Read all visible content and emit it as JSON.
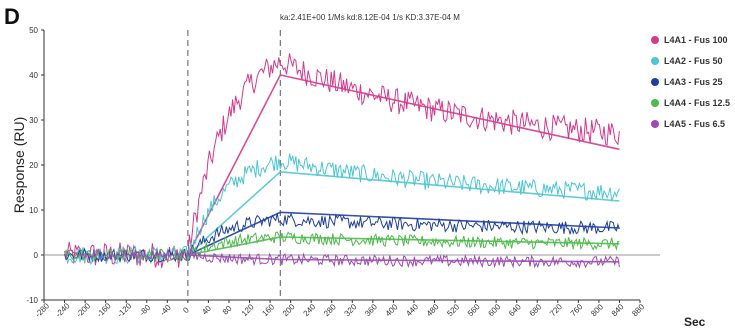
{
  "chart_data": {
    "type": "line",
    "panel_label": "D",
    "title": "ka:2.41E+00 1/Ms  kd:8.12E-04 1/s  KD:3.37E-04 M",
    "xlabel": "Sec",
    "ylabel": "Response (RU)",
    "xlim": [
      -280,
      880
    ],
    "ylim": [
      -10,
      50
    ],
    "x_ticks": [
      -280,
      -240,
      -200,
      -160,
      -120,
      -80,
      -40,
      0,
      40,
      80,
      120,
      160,
      200,
      240,
      280,
      320,
      360,
      400,
      440,
      480,
      520,
      560,
      600,
      640,
      680,
      720,
      760,
      800,
      840,
      880
    ],
    "y_ticks": [
      -10,
      0,
      10,
      20,
      30,
      40,
      50
    ],
    "y_tick_labels": [
      "-10",
      "0",
      "10",
      "20",
      "30",
      "40",
      "50"
    ],
    "vertical_markers": [
      0,
      180
    ],
    "grid": false,
    "legend_position": "right",
    "series": [
      {
        "name": "L4A1 - Fus 100",
        "color": "#d6398b",
        "baseline": 0,
        "peak": 43,
        "end": 27,
        "fit_peak": 40,
        "fit_end": 23.5
      },
      {
        "name": "L4A2 - Fus 50",
        "color": "#4cc6d3",
        "baseline": 0,
        "peak": 21,
        "end": 14,
        "fit_peak": 18.5,
        "fit_end": 12
      },
      {
        "name": "L4A3 - Fus 25",
        "color": "#1f3f9e",
        "baseline": 0,
        "peak": 8,
        "end": 6,
        "fit_peak": 9.5,
        "fit_end": 6
      },
      {
        "name": "L4A4 - Fus 12.5",
        "color": "#4cbb4a",
        "baseline": 0,
        "peak": 4,
        "end": 2.5,
        "fit_peak": 4,
        "fit_end": 2.5
      },
      {
        "name": "L4A5 - Fus 6.5",
        "color": "#9c4bb5",
        "baseline": 0,
        "peak": -1,
        "end": -1.5,
        "fit_peak": -1,
        "fit_end": -1.5
      }
    ]
  },
  "colors": {
    "zero_line": "#999999",
    "marker_line": "#777777",
    "axis": "#333333"
  }
}
